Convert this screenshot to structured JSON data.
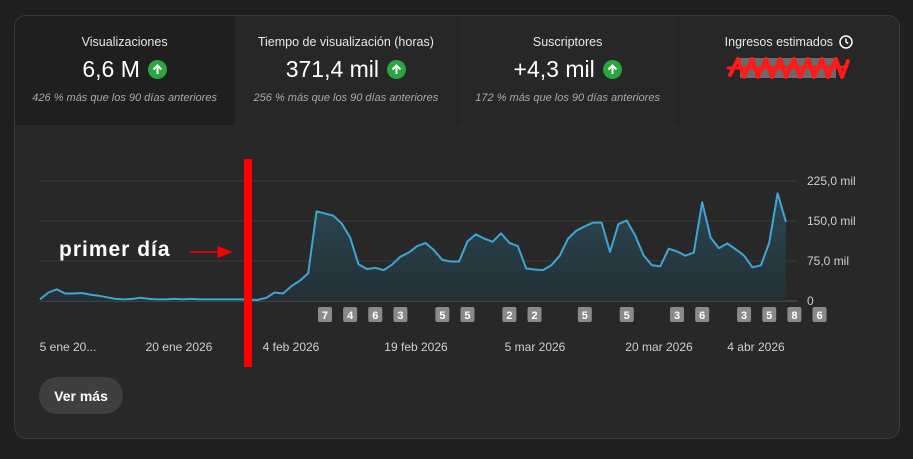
{
  "metrics": [
    {
      "label": "Visualizaciones",
      "value": "6,6 M",
      "compare": "426 % más que los 90 días anteriores"
    },
    {
      "label": "Tiempo de visualización (horas)",
      "value": "371,4 mil",
      "compare": "256 % más que los 90 días anteriores"
    },
    {
      "label": "Suscriptores",
      "value": "+4,3 mil",
      "compare": "172 % más que los 90 días anteriores"
    },
    {
      "label": "Ingresos estimados",
      "value": "",
      "compare": ""
    }
  ],
  "annotation": {
    "text": "primer día"
  },
  "chart_data": {
    "type": "area",
    "ylim": [
      0,
      225
    ],
    "yticks": [
      "225,0 mil",
      "150,0 mil",
      "75,0 mil",
      "0"
    ],
    "xtick_labels": [
      "5 ene 20...",
      "20 ene 2026",
      "4 feb 2026",
      "19 feb 2026",
      "5 mar 2026",
      "20 mar 2026",
      "4 abr 2026"
    ],
    "values": [
      3,
      16,
      22,
      14,
      14,
      15,
      12,
      10,
      7,
      4,
      3,
      4,
      6,
      4,
      3,
      3,
      4,
      3,
      4,
      3,
      3,
      3,
      3,
      3,
      3,
      2,
      2,
      6,
      16,
      14,
      28,
      38,
      52,
      168,
      164,
      160,
      145,
      119,
      69,
      60,
      62,
      58,
      68,
      83,
      91,
      103,
      109,
      95,
      77,
      74,
      74,
      112,
      125,
      117,
      111,
      127,
      109,
      103,
      61,
      59,
      58,
      67,
      85,
      117,
      132,
      140,
      147,
      147,
      92,
      144,
      151,
      123,
      86,
      67,
      65,
      98,
      93,
      85,
      91,
      185,
      119,
      99,
      108,
      97,
      85,
      63,
      67,
      109,
      202,
      148
    ],
    "events": [
      {
        "label": "7",
        "i": 34
      },
      {
        "label": "4",
        "i": 37
      },
      {
        "label": "6",
        "i": 40
      },
      {
        "label": "3",
        "i": 43
      },
      {
        "label": "5",
        "i": 48
      },
      {
        "label": "5",
        "i": 51
      },
      {
        "label": "2",
        "i": 56
      },
      {
        "label": "2",
        "i": 59
      },
      {
        "label": "5",
        "i": 65
      },
      {
        "label": "5",
        "i": 70
      },
      {
        "label": "3",
        "i": 76
      },
      {
        "label": "6",
        "i": 79
      },
      {
        "label": "3",
        "i": 84
      },
      {
        "label": "5",
        "i": 87
      },
      {
        "label": "8",
        "i": 90
      },
      {
        "label": "6",
        "i": 93
      }
    ]
  },
  "actions": {
    "ver_mas": "Ver más"
  },
  "colors": {
    "line": "#3ea6d4",
    "accent": "#2ba640",
    "marker": "#ff0000"
  }
}
